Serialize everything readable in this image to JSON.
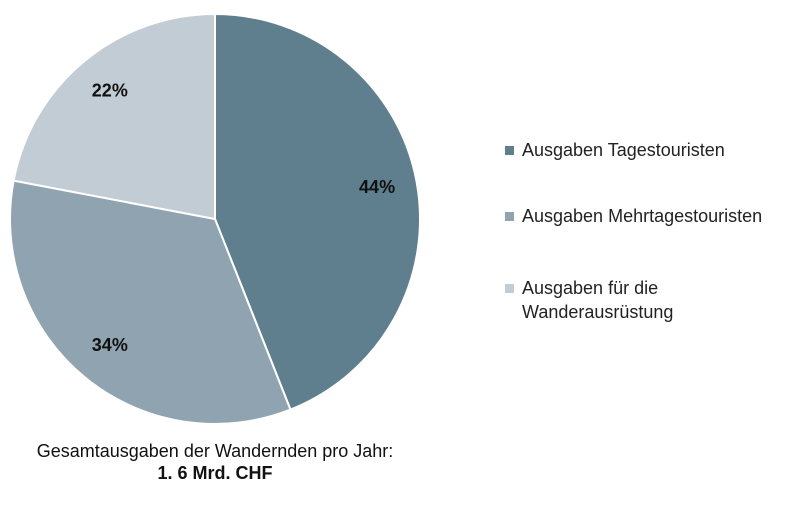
{
  "chart_data": {
    "type": "pie",
    "categories": [
      "Ausgaben Tagestouristen",
      "Ausgaben Mehrtagestouristen",
      "Ausgaben für die Wanderausrüstung"
    ],
    "values": [
      44,
      34,
      22
    ],
    "value_labels": [
      "44%",
      "34%",
      "22%"
    ],
    "colors": [
      "#5f7e8e",
      "#8fa4b0",
      "#c1ccd4"
    ],
    "legend": "right",
    "annotation": "Gesamtausgaben der Wandernden pro Jahr:",
    "annotation_bold": "1. 6 Mrd. CHF"
  }
}
